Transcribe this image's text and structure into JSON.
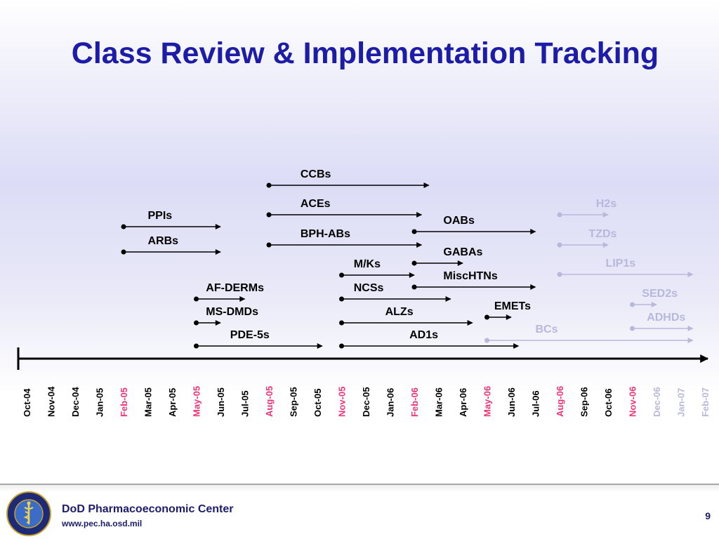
{
  "title": "Class Review & Implementation Tracking",
  "months": [
    {
      "label": "Oct-04",
      "color": "#000000"
    },
    {
      "label": "Nov-04",
      "color": "#000000"
    },
    {
      "label": "Dec-04",
      "color": "#000000"
    },
    {
      "label": "Jan-05",
      "color": "#000000"
    },
    {
      "label": "Feb-05",
      "color": "#ee3377"
    },
    {
      "label": "Mar-05",
      "color": "#000000"
    },
    {
      "label": "Apr-05",
      "color": "#000000"
    },
    {
      "label": "May-05",
      "color": "#ee3377"
    },
    {
      "label": "Jun-05",
      "color": "#000000"
    },
    {
      "label": "Jul-05",
      "color": "#000000"
    },
    {
      "label": "Aug-05",
      "color": "#ee3377"
    },
    {
      "label": "Sep-05",
      "color": "#000000"
    },
    {
      "label": "Oct-05",
      "color": "#000000"
    },
    {
      "label": "Nov-05",
      "color": "#ee3377"
    },
    {
      "label": "Dec-05",
      "color": "#000000"
    },
    {
      "label": "Jan-06",
      "color": "#000000"
    },
    {
      "label": "Feb-06",
      "color": "#ee3377"
    },
    {
      "label": "Mar-06",
      "color": "#000000"
    },
    {
      "label": "Apr-06",
      "color": "#000000"
    },
    {
      "label": "May-06",
      "color": "#ee3377"
    },
    {
      "label": "Jun-06",
      "color": "#000000"
    },
    {
      "label": "Jul-06",
      "color": "#000000"
    },
    {
      "label": "Aug-06",
      "color": "#ee3377"
    },
    {
      "label": "Sep-06",
      "color": "#000000"
    },
    {
      "label": "Oct-06",
      "color": "#000000"
    },
    {
      "label": "Nov-06",
      "color": "#ee3377"
    },
    {
      "label": "Dec-06",
      "color": "#b8b8dc"
    },
    {
      "label": "Jan-07",
      "color": "#b8b8dc"
    },
    {
      "label": "Feb-07",
      "color": "#b8b8dc"
    }
  ],
  "classes": [
    {
      "name": "PPIs",
      "start": "Feb-05",
      "end": "Jun-05",
      "color": "#000000"
    },
    {
      "name": "ARBs",
      "start": "Feb-05",
      "end": "Jun-05",
      "color": "#000000"
    },
    {
      "name": "AF-DERMs",
      "start": "May-05",
      "end": "Jul-05",
      "color": "#000000"
    },
    {
      "name": "MS-DMDs",
      "start": "May-05",
      "end": "Jun-05",
      "color": "#000000"
    },
    {
      "name": "PDE-5s",
      "start": "May-05",
      "end": "Oct-05",
      "color": "#000000"
    },
    {
      "name": "CCBs",
      "start": "Aug-05",
      "end": "Feb-06",
      "color": "#000000"
    },
    {
      "name": "ACEs",
      "start": "Aug-05",
      "end": "Feb-06",
      "color": "#000000"
    },
    {
      "name": "BPH-ABs",
      "start": "Aug-05",
      "end": "Feb-06",
      "color": "#000000"
    },
    {
      "name": "M/Ks",
      "start": "Nov-05",
      "end": "Feb-06",
      "color": "#000000"
    },
    {
      "name": "NCSs",
      "start": "Nov-05",
      "end": "Mar-06",
      "color": "#000000"
    },
    {
      "name": "ALZs",
      "start": "Nov-05",
      "end": "Apr-06",
      "color": "#000000"
    },
    {
      "name": "AD1s",
      "start": "Nov-05",
      "end": "Jun-06",
      "color": "#000000"
    },
    {
      "name": "OABs",
      "start": "Feb-06",
      "end": "Jul-06",
      "color": "#000000"
    },
    {
      "name": "GABAs",
      "start": "Feb-06",
      "end": "Apr-06",
      "color": "#000000"
    },
    {
      "name": "MiscHTNs",
      "start": "Feb-06",
      "end": "Jul-06",
      "color": "#000000"
    },
    {
      "name": "EMETs",
      "start": "May-06",
      "end": "Jun-06",
      "color": "#000000"
    },
    {
      "name": "BCs",
      "start": "May-06",
      "end": "Jan-07",
      "color": "#b8b8dc"
    },
    {
      "name": "H2s",
      "start": "Aug-06",
      "end": "Oct-06",
      "color": "#b8b8dc"
    },
    {
      "name": "TZDs",
      "start": "Aug-06",
      "end": "Oct-06",
      "color": "#b8b8dc"
    },
    {
      "name": "LIP1s",
      "start": "Aug-06",
      "end": "Jan-07",
      "color": "#b8b8dc"
    },
    {
      "name": "SED2s",
      "start": "Nov-06",
      "end": "Dec-06",
      "color": "#b8b8dc"
    },
    {
      "name": "ADHDs",
      "start": "Nov-06",
      "end": "Jan-07",
      "color": "#b8b8dc"
    }
  ],
  "footer": {
    "org_name": "DoD Pharmacoeconomic Center",
    "url": "www.pec.ha.osd.mil",
    "seal_text": "PHARMACOECONOMIC CENTER",
    "page_number": "9"
  }
}
